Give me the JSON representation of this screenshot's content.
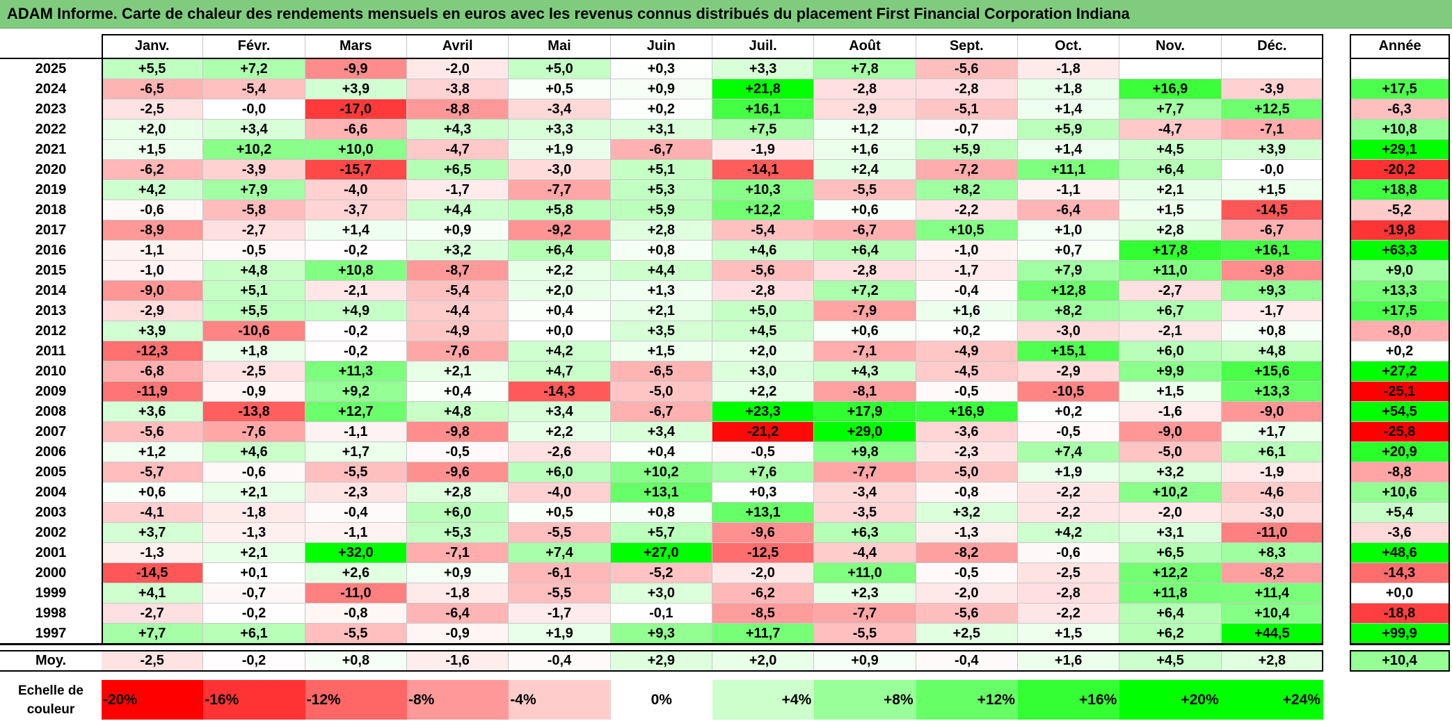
{
  "title": "ADAM Informe. Carte de chaleur des rendements mensuels en euros avec les revenus connus distribués du placement First Financial Corporation Indiana",
  "chart_data": {
    "type": "heatmap",
    "title": "ADAM Informe. Carte de chaleur des rendements mensuels en euros avec les revenus connus distribués du placement First Financial Corporation Indiana",
    "months": [
      "Janv.",
      "Févr.",
      "Mars",
      "Avril",
      "Mai",
      "Juin",
      "Juil.",
      "Août",
      "Sept.",
      "Oct.",
      "Nov.",
      "Déc."
    ],
    "year_col_label": "Année",
    "rows": [
      {
        "year": "2025",
        "values": [
          "+5,5",
          "+7,2",
          "-9,9",
          "-2,0",
          "+5,0",
          "+0,3",
          "+3,3",
          "+7,8",
          "-5,6",
          "-1,8",
          "",
          ""
        ],
        "annual": ""
      },
      {
        "year": "2024",
        "values": [
          "-6,5",
          "-5,4",
          "+3,9",
          "-3,8",
          "+0,5",
          "+0,9",
          "+21,8",
          "-2,8",
          "-2,8",
          "+1,8",
          "+16,9",
          "-3,9"
        ],
        "annual": "+17,5"
      },
      {
        "year": "2023",
        "values": [
          "-2,5",
          "-0,0",
          "-17,0",
          "-8,8",
          "-3,4",
          "+0,2",
          "+16,1",
          "-2,9",
          "-5,1",
          "+1,4",
          "+7,7",
          "+12,5"
        ],
        "annual": "-6,3"
      },
      {
        "year": "2022",
        "values": [
          "+2,0",
          "+3,4",
          "-6,6",
          "+4,3",
          "+3,3",
          "+3,1",
          "+7,5",
          "+1,2",
          "-0,7",
          "+5,9",
          "-4,7",
          "-7,1"
        ],
        "annual": "+10,8"
      },
      {
        "year": "2021",
        "values": [
          "+1,5",
          "+10,2",
          "+10,0",
          "-4,7",
          "+1,9",
          "-6,7",
          "-1,9",
          "+1,6",
          "+5,9",
          "+1,4",
          "+4,5",
          "+3,9"
        ],
        "annual": "+29,1"
      },
      {
        "year": "2020",
        "values": [
          "-6,2",
          "-3,9",
          "-15,7",
          "+6,5",
          "-3,0",
          "+5,1",
          "-14,1",
          "+2,4",
          "-7,2",
          "+11,1",
          "+6,4",
          "-0,0"
        ],
        "annual": "-20,2"
      },
      {
        "year": "2019",
        "values": [
          "+4,2",
          "+7,9",
          "-4,0",
          "-1,7",
          "-7,7",
          "+5,3",
          "+10,3",
          "-5,5",
          "+8,2",
          "-1,1",
          "+2,1",
          "+1,5"
        ],
        "annual": "+18,8"
      },
      {
        "year": "2018",
        "values": [
          "-0,6",
          "-5,8",
          "-3,7",
          "+4,4",
          "+5,8",
          "+5,9",
          "+12,2",
          "+0,6",
          "-2,2",
          "-6,4",
          "+1,5",
          "-14,5"
        ],
        "annual": "-5,2"
      },
      {
        "year": "2017",
        "values": [
          "-8,9",
          "-2,7",
          "+1,4",
          "+0,9",
          "-9,2",
          "+2,8",
          "-5,4",
          "-6,7",
          "+10,5",
          "+1,0",
          "+2,8",
          "-6,7"
        ],
        "annual": "-19,8"
      },
      {
        "year": "2016",
        "values": [
          "-1,1",
          "-0,5",
          "-0,2",
          "+3,2",
          "+6,4",
          "+0,8",
          "+4,6",
          "+6,4",
          "-1,0",
          "+0,7",
          "+17,8",
          "+16,1"
        ],
        "annual": "+63,3"
      },
      {
        "year": "2015",
        "values": [
          "-1,0",
          "+4,8",
          "+10,8",
          "-8,7",
          "+2,2",
          "+4,4",
          "-5,6",
          "-2,8",
          "-1,7",
          "+7,9",
          "+11,0",
          "-9,8"
        ],
        "annual": "+9,0"
      },
      {
        "year": "2014",
        "values": [
          "-9,0",
          "+5,1",
          "-2,1",
          "-5,4",
          "+2,0",
          "+1,3",
          "-2,8",
          "+7,2",
          "-0,4",
          "+12,8",
          "-2,7",
          "+9,3"
        ],
        "annual": "+13,3"
      },
      {
        "year": "2013",
        "values": [
          "-2,9",
          "+5,5",
          "+4,9",
          "-4,4",
          "+0,4",
          "+2,1",
          "+5,0",
          "-7,9",
          "+1,6",
          "+8,2",
          "+6,7",
          "-1,7"
        ],
        "annual": "+17,5"
      },
      {
        "year": "2012",
        "values": [
          "+3,9",
          "-10,6",
          "-0,2",
          "-4,9",
          "+0,0",
          "+3,5",
          "+4,5",
          "+0,6",
          "+0,2",
          "-3,0",
          "-2,1",
          "+0,8"
        ],
        "annual": "-8,0"
      },
      {
        "year": "2011",
        "values": [
          "-12,3",
          "+1,8",
          "-0,2",
          "-7,6",
          "+4,2",
          "+1,5",
          "+2,0",
          "-7,1",
          "-4,9",
          "+15,1",
          "+6,0",
          "+4,8"
        ],
        "annual": "+0,2"
      },
      {
        "year": "2010",
        "values": [
          "-6,8",
          "-2,5",
          "+11,3",
          "+2,1",
          "+4,7",
          "-6,5",
          "+3,0",
          "+4,3",
          "-4,5",
          "-2,9",
          "+9,9",
          "+15,6"
        ],
        "annual": "+27,2"
      },
      {
        "year": "2009",
        "values": [
          "-11,9",
          "-0,9",
          "+9,2",
          "+0,4",
          "-14,3",
          "-5,0",
          "+2,2",
          "-8,1",
          "-0,5",
          "-10,5",
          "+1,5",
          "+13,3"
        ],
        "annual": "-25,1"
      },
      {
        "year": "2008",
        "values": [
          "+3,6",
          "-13,8",
          "+12,7",
          "+4,8",
          "+3,4",
          "-6,7",
          "+23,3",
          "+17,9",
          "+16,9",
          "+0,2",
          "-1,6",
          "-9,0"
        ],
        "annual": "+54,5"
      },
      {
        "year": "2007",
        "values": [
          "-5,6",
          "-7,6",
          "-1,1",
          "-9,8",
          "+2,2",
          "+3,4",
          "-21,2",
          "+29,0",
          "-3,6",
          "-0,5",
          "-9,0",
          "+1,7"
        ],
        "annual": "-25,8"
      },
      {
        "year": "2006",
        "values": [
          "+1,2",
          "+4,6",
          "+1,7",
          "-0,5",
          "-2,6",
          "+0,4",
          "-0,5",
          "+9,8",
          "-2,3",
          "+7,4",
          "-5,0",
          "+6,1"
        ],
        "annual": "+20,9"
      },
      {
        "year": "2005",
        "values": [
          "-5,7",
          "-0,6",
          "-5,5",
          "-9,6",
          "+6,0",
          "+10,2",
          "+7,6",
          "-7,7",
          "-5,0",
          "+1,9",
          "+3,2",
          "-1,9"
        ],
        "annual": "-8,8"
      },
      {
        "year": "2004",
        "values": [
          "+0,6",
          "+2,1",
          "-2,3",
          "+2,8",
          "-4,0",
          "+13,1",
          "+0,3",
          "-3,4",
          "-0,8",
          "-2,2",
          "+10,2",
          "-4,6"
        ],
        "annual": "+10,6"
      },
      {
        "year": "2003",
        "values": [
          "-4,1",
          "-1,8",
          "-0,4",
          "+6,0",
          "+0,5",
          "+0,8",
          "+13,1",
          "-3,5",
          "+3,2",
          "-2,2",
          "-2,0",
          "-3,0"
        ],
        "annual": "+5,4"
      },
      {
        "year": "2002",
        "values": [
          "+3,7",
          "-1,3",
          "-1,1",
          "+5,3",
          "-5,5",
          "+5,7",
          "-9,6",
          "+6,3",
          "-1,3",
          "+4,2",
          "+3,1",
          "-11,0"
        ],
        "annual": "-3,6"
      },
      {
        "year": "2001",
        "values": [
          "-1,3",
          "+2,1",
          "+32,0",
          "-7,1",
          "+7,4",
          "+27,0",
          "-12,5",
          "-4,4",
          "-8,2",
          "-0,6",
          "+6,5",
          "+8,3"
        ],
        "annual": "+48,6"
      },
      {
        "year": "2000",
        "values": [
          "-14,5",
          "+0,1",
          "+2,6",
          "+0,9",
          "-6,1",
          "-5,2",
          "-2,0",
          "+11,0",
          "-0,5",
          "-2,5",
          "+12,2",
          "-8,2"
        ],
        "annual": "-14,3"
      },
      {
        "year": "1999",
        "values": [
          "+4,1",
          "-0,7",
          "-11,0",
          "-1,8",
          "-5,5",
          "+3,0",
          "-6,2",
          "+2,3",
          "-2,0",
          "-2,8",
          "+11,8",
          "+11,4"
        ],
        "annual": "+0,0"
      },
      {
        "year": "1998",
        "values": [
          "-2,7",
          "-0,2",
          "-0,8",
          "-6,4",
          "-1,7",
          "-0,1",
          "-8,5",
          "-7,7",
          "-5,6",
          "-2,2",
          "+6,4",
          "+10,4"
        ],
        "annual": "-18,8"
      },
      {
        "year": "1997",
        "values": [
          "+7,7",
          "+6,1",
          "-5,5",
          "-0,9",
          "+1,9",
          "+9,3",
          "+11,7",
          "-5,5",
          "+2,5",
          "+1,5",
          "+6,2",
          "+44,5"
        ],
        "annual": "+99,9"
      }
    ],
    "average": {
      "label": "Moy.",
      "values": [
        "-2,5",
        "-0,2",
        "+0,8",
        "-1,6",
        "-0,4",
        "+2,9",
        "+2,0",
        "+0,9",
        "-0,4",
        "+1,6",
        "+4,5",
        "+2,8"
      ],
      "annual": "+10,4"
    },
    "scale": {
      "label_line1": "Echelle de",
      "label_line2": "couleur",
      "stops": [
        {
          "label": "-20%",
          "color": "#ff0000"
        },
        {
          "label": "-16%",
          "color": "#ff3333"
        },
        {
          "label": "-12%",
          "color": "#ff6666"
        },
        {
          "label": "-8%",
          "color": "#ff9999"
        },
        {
          "label": "-4%",
          "color": "#ffcccc"
        },
        {
          "label": "0%",
          "color": "#ffffff"
        },
        {
          "label": "+4%",
          "color": "#ccffcc"
        },
        {
          "label": "+8%",
          "color": "#99ff99"
        },
        {
          "label": "+12%",
          "color": "#66ff66"
        },
        {
          "label": "+16%",
          "color": "#33ff33"
        },
        {
          "label": "+20%",
          "color": "#00ff00"
        },
        {
          "label": "+24%",
          "color": "#00ff00"
        }
      ]
    },
    "colors": {
      "title_bar": "#7fcc7f",
      "max_red": "#ff0000",
      "max_green": "#00ff00",
      "neutral": "#ffffff"
    }
  }
}
